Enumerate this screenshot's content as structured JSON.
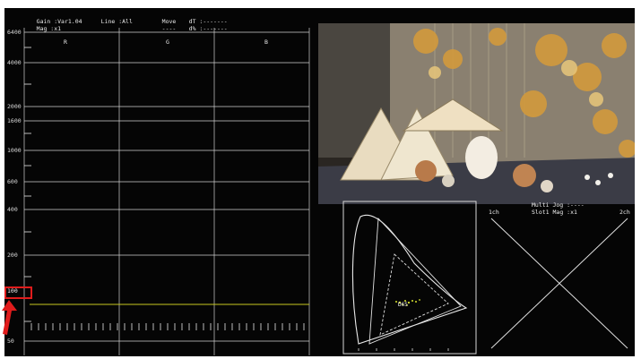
{
  "header": {
    "gain_label": "Gain :",
    "gain_value": "Var1.04",
    "line_label": "Line :",
    "line_value": "All",
    "move_label": "Move",
    "dt_label": "dT :",
    "dt_value": "-------",
    "mag_label": "Mag :",
    "mag_value": "x1",
    "dashes": "----",
    "dpct_label": "d% :",
    "dpct_value": "-------"
  },
  "waveform": {
    "scale_labels": [
      "6400",
      "4000",
      "2000",
      "1600",
      "1000",
      "600",
      "400",
      "200",
      "100",
      "50"
    ],
    "channels": [
      "R",
      "G",
      "B"
    ],
    "highlighted_label": "100",
    "trace_color": "#3fae55",
    "cursor_color": "#c8c820"
  },
  "audio": {
    "multi_label": "Multi Jog :",
    "multi_value": "----",
    "slot_label": "Slot1",
    "mag_label": "Mag :",
    "mag_value": "x1",
    "left_channel": "1ch",
    "right_channel": "2ch"
  },
  "vectorscope": {
    "point_label": "D65"
  },
  "colors": {
    "highlight_box": "#e01c1c",
    "grid": "#d0d0d0",
    "background": "#050505"
  }
}
